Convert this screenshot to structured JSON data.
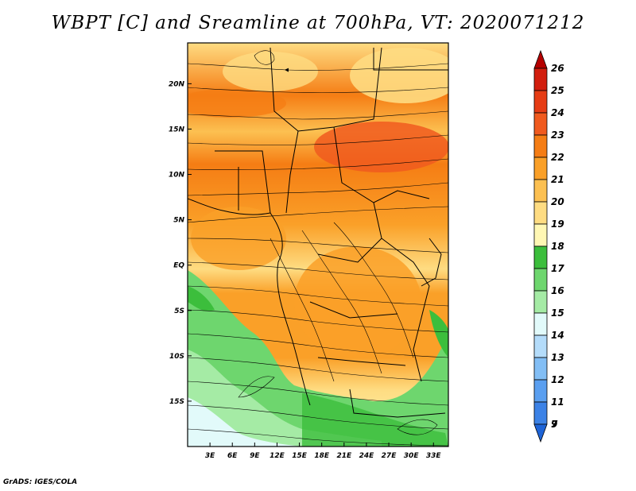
{
  "title": "WBPT [C] and Sreamline at 700hPa, VT: 2020071212",
  "credit": "GrADS: IGES/COLA",
  "map": {
    "lon_range": [
      0,
      35
    ],
    "lat_range": [
      -20,
      24.5
    ],
    "lat_ticks": [
      {
        "value": 20,
        "label": "20N"
      },
      {
        "value": 15,
        "label": "15N"
      },
      {
        "value": 10,
        "label": "10N"
      },
      {
        "value": 5,
        "label": "5N"
      },
      {
        "value": 0,
        "label": "EQ"
      },
      {
        "value": -5,
        "label": "5S"
      },
      {
        "value": -10,
        "label": "10S"
      },
      {
        "value": -15,
        "label": "15S"
      }
    ],
    "lon_ticks": [
      {
        "value": 3,
        "label": "3E"
      },
      {
        "value": 6,
        "label": "6E"
      },
      {
        "value": 9,
        "label": "9E"
      },
      {
        "value": 12,
        "label": "12E"
      },
      {
        "value": 15,
        "label": "15E"
      },
      {
        "value": 18,
        "label": "18E"
      },
      {
        "value": 21,
        "label": "21E"
      },
      {
        "value": 24,
        "label": "24E"
      },
      {
        "value": 27,
        "label": "27E"
      },
      {
        "value": 30,
        "label": "30E"
      },
      {
        "value": 33,
        "label": "33E"
      }
    ]
  },
  "colorbar": {
    "bins": [
      {
        "label": "26",
        "color": "#b40000"
      },
      {
        "label": "25",
        "color": "#d21e0e"
      },
      {
        "label": "24",
        "color": "#e63c14"
      },
      {
        "label": "23",
        "color": "#f05a1e"
      },
      {
        "label": "22",
        "color": "#f57d14"
      },
      {
        "label": "21",
        "color": "#faa028"
      },
      {
        "label": "20",
        "color": "#fcc051"
      },
      {
        "label": "19",
        "color": "#fedc82"
      },
      {
        "label": "18",
        "color": "#fff7b4"
      },
      {
        "label": "17",
        "color": "#3cbe3c"
      },
      {
        "label": "16",
        "color": "#6ed66e"
      },
      {
        "label": "15",
        "color": "#a5eba5"
      },
      {
        "label": "14",
        "color": "#e2fafa"
      },
      {
        "label": "13",
        "color": "#b4dcfa"
      },
      {
        "label": "12",
        "color": "#82bef5"
      },
      {
        "label": "11",
        "color": "#5a9ff0"
      },
      {
        "label": "9",
        "color": "#3c82e6"
      },
      {
        "label": "7",
        "color": "#1e64d7"
      }
    ]
  }
}
